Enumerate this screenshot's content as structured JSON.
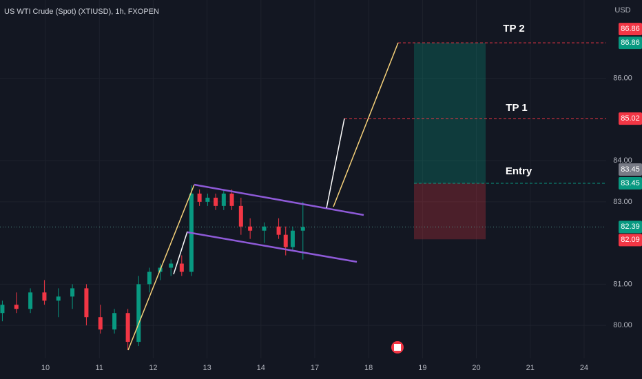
{
  "chart_data": {
    "type": "candlestick",
    "title": "US WTI Crude (Spot) (XTIUSD), 1h, FXOPEN",
    "currency": "USD",
    "x": [
      0.2,
      0.46,
      0.72,
      0.98,
      1.24,
      1.5,
      1.76,
      2.02,
      2.28,
      2.53,
      2.73,
      2.93,
      3.13,
      3.33,
      3.53,
      3.71,
      3.86,
      4.01,
      4.16,
      4.31,
      4.46,
      4.63,
      4.8,
      5.06,
      5.33,
      5.46,
      5.59,
      5.78
    ],
    "open": [
      80.3,
      80.5,
      80.4,
      80.8,
      80.6,
      80.7,
      80.9,
      80.2,
      79.9,
      80.3,
      79.6,
      81.0,
      81.3,
      81.4,
      81.5,
      81.3,
      83.2,
      83.0,
      83.1,
      82.9,
      83.2,
      82.9,
      82.4,
      82.3,
      82.4,
      82.2,
      81.9,
      82.3
    ],
    "high": [
      80.6,
      80.8,
      80.9,
      81.1,
      80.9,
      81.0,
      81.0,
      80.5,
      80.4,
      80.4,
      81.2,
      81.4,
      81.5,
      81.6,
      81.7,
      83.4,
      83.3,
      83.2,
      83.2,
      83.3,
      83.3,
      83.1,
      82.6,
      82.5,
      82.6,
      82.4,
      82.4,
      83.0
    ],
    "low": [
      80.1,
      80.3,
      80.3,
      80.5,
      80.2,
      80.4,
      80.0,
      79.8,
      79.8,
      79.4,
      79.5,
      80.8,
      81.1,
      81.2,
      81.2,
      81.2,
      82.9,
      82.9,
      82.8,
      82.8,
      82.8,
      82.2,
      82.1,
      82.0,
      82.1,
      81.7,
      81.8,
      81.6
    ],
    "close": [
      80.5,
      80.4,
      80.8,
      80.6,
      80.7,
      80.9,
      80.2,
      79.9,
      80.3,
      79.6,
      81.0,
      81.3,
      81.4,
      81.5,
      81.3,
      83.2,
      83.0,
      83.1,
      82.9,
      83.2,
      82.9,
      82.4,
      82.3,
      82.4,
      82.2,
      81.9,
      82.3,
      82.39
    ],
    "up_color": "#089981",
    "down_color": "#f23645",
    "xlim": [
      0.156,
      11.41
    ],
    "xticks": [
      {
        "value": 1,
        "label": "10"
      },
      {
        "value": 2,
        "label": "11"
      },
      {
        "value": 3,
        "label": "12"
      },
      {
        "value": 4,
        "label": "13"
      },
      {
        "value": 5,
        "label": "14"
      },
      {
        "value": 6,
        "label": "17"
      },
      {
        "value": 7,
        "label": "18"
      },
      {
        "value": 8,
        "label": "19"
      },
      {
        "value": 9,
        "label": "20"
      },
      {
        "value": 10,
        "label": "21"
      },
      {
        "value": 11,
        "label": "24"
      }
    ],
    "ylim": [
      79.2,
      87.9
    ],
    "yticks": [
      {
        "value": 80,
        "label": "80.00"
      },
      {
        "value": 81,
        "label": "81.00"
      },
      {
        "value": 83,
        "label": "83.00"
      },
      {
        "value": 84,
        "label": "84.00"
      },
      {
        "value": 86,
        "label": "86.00"
      }
    ],
    "grid": true,
    "price_marks": [
      {
        "value": 86.86,
        "color": "#f23645"
      },
      {
        "value": 86.86,
        "color": "#089981"
      },
      {
        "value": 85.02,
        "color": "#f23645"
      },
      {
        "value": 83.45,
        "color": "#787b86"
      },
      {
        "value": 83.45,
        "color": "#089981"
      },
      {
        "value": 82.39,
        "color": "#089981"
      },
      {
        "value": 82.09,
        "color": "#f23645"
      }
    ],
    "annotations": [
      "TP 2",
      "TP 1",
      "Entry"
    ]
  }
}
